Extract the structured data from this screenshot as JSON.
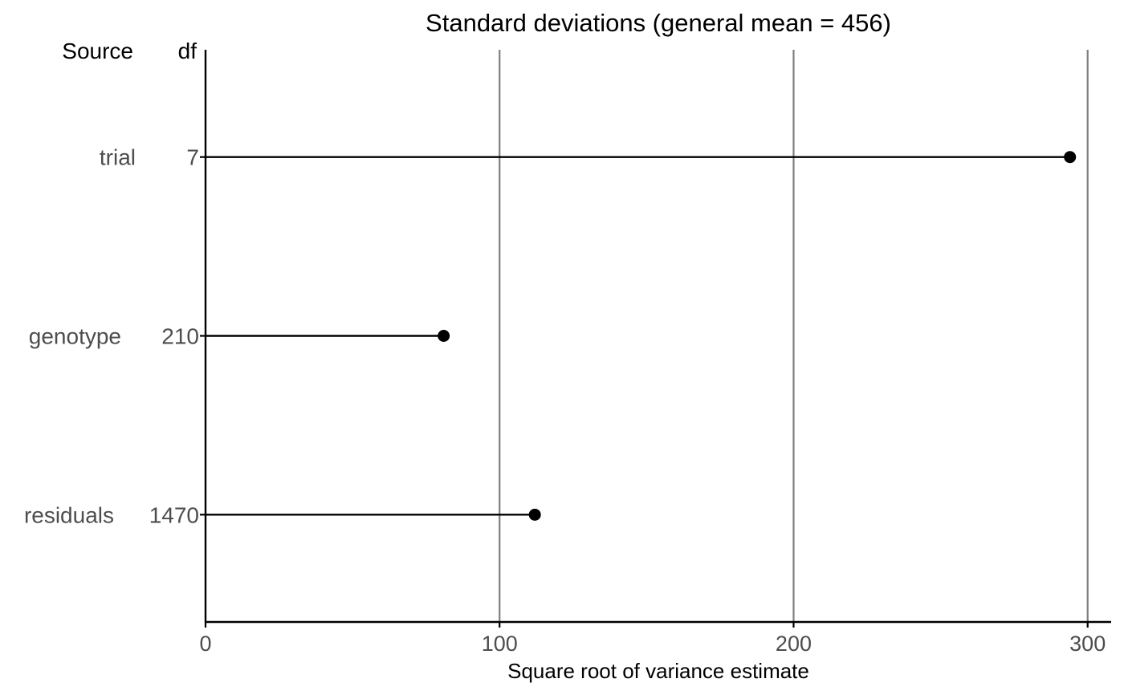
{
  "chart_data": {
    "type": "lollipop",
    "title": "Standard deviations (general mean = 456)",
    "xlabel": "Square root of variance estimate",
    "column_headers": {
      "source": "Source",
      "df": "df"
    },
    "categories": [
      "trial",
      "genotype",
      "residuals"
    ],
    "df": [
      "7",
      "210",
      "1470"
    ],
    "values": [
      294,
      81,
      112
    ],
    "xlim": [
      0,
      308
    ],
    "xticks": [
      0,
      100,
      200,
      300
    ],
    "grid": "vertical major lines",
    "legend": "none",
    "colors": {
      "marks": "#000000",
      "grid": "#7f7f7f",
      "labels": "#4d4d4d"
    }
  }
}
